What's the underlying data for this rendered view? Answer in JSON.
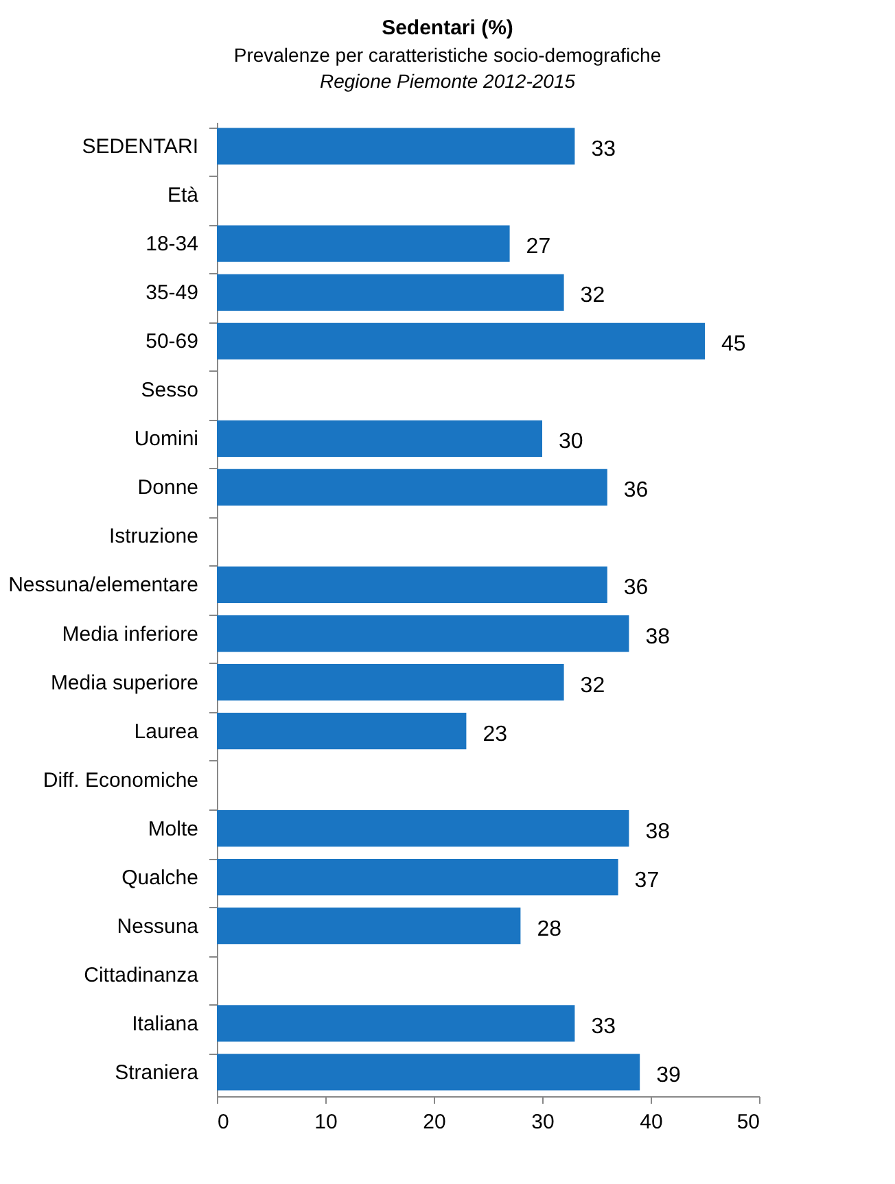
{
  "chart_data": {
    "type": "bar",
    "orientation": "horizontal",
    "title": "Sedentari (%)",
    "subtitle": "Prevalenze per caratteristiche socio-demografiche",
    "annotations": [
      "Regione Piemonte 2012-2015"
    ],
    "categories": [
      "SEDENTARI",
      "Età",
      "18-34",
      "35-49",
      "50-69",
      "Sesso",
      "Uomini",
      "Donne",
      "Istruzione",
      "Nessuna/elementare",
      "Media inferiore",
      "Media superiore",
      "Laurea",
      "Diff. Economiche",
      "Molte",
      "Qualche",
      "Nessuna",
      "Cittadinanza",
      "Italiana",
      "Straniera"
    ],
    "values": [
      33,
      null,
      27,
      32,
      45,
      null,
      30,
      36,
      null,
      36,
      38,
      32,
      23,
      null,
      38,
      37,
      28,
      null,
      33,
      39
    ],
    "color": "#1a75c2",
    "xlim": [
      0,
      50
    ],
    "xticks": [
      0,
      10,
      20,
      30,
      40,
      50
    ],
    "data_labels": true,
    "grid": false
  }
}
